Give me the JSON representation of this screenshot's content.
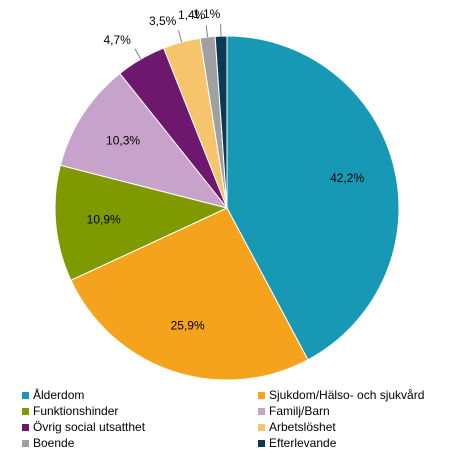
{
  "chart_data": {
    "type": "pie",
    "title": "",
    "categories": [
      "Ålderdom",
      "Sjukdom/Hälso- och sjukvård",
      "Funktionshinder",
      "Familj/Barn",
      "Övrig social utsatthet",
      "Arbetslöshet",
      "Boende",
      "Efterlevande"
    ],
    "values": [
      42.2,
      25.9,
      10.9,
      10.3,
      4.7,
      3.5,
      1.4,
      1.1
    ],
    "data_labels": [
      "42,2%",
      "25,9%",
      "10,9%",
      "10,3%",
      "4,7%",
      "3,5%",
      "1,4%",
      "1,1%"
    ],
    "colors": [
      "#1798B4",
      "#F5A31C",
      "#7E9A00",
      "#C7A3CB",
      "#6E176F",
      "#F7C46E",
      "#A0A0A0",
      "#0C3A55"
    ],
    "legend_position": "bottom",
    "start": "12 o'clock",
    "direction": "clockwise"
  }
}
